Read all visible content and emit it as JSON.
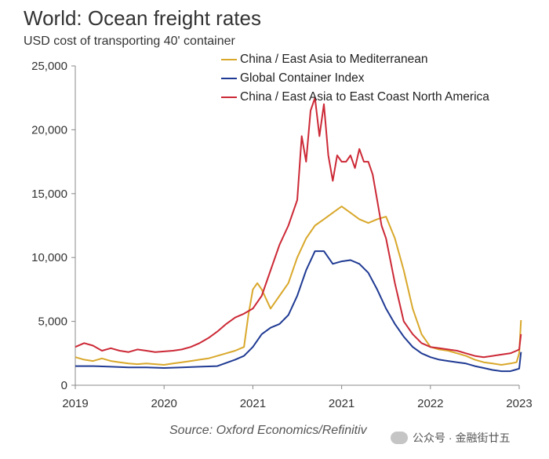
{
  "header": {
    "title": "World: Ocean freight rates",
    "subtitle": "USD cost of transporting 40' container"
  },
  "footer": {
    "source": "Source: Oxford Economics/Refinitiv",
    "watermark": "公众号 · 金融街廿五"
  },
  "chart_data": {
    "type": "line",
    "title": "World: Ocean freight rates",
    "subtitle": "USD cost of transporting 40' container",
    "xlabel": "",
    "ylabel": "",
    "ylim": [
      0,
      25000
    ],
    "xlim": [
      0,
      5
    ],
    "yticks": [
      0,
      5000,
      10000,
      15000,
      20000,
      25000
    ],
    "ytick_labels": [
      "0",
      "5,000",
      "10,000",
      "15,000",
      "20,000",
      "25,000"
    ],
    "xticks": [
      0,
      1,
      2,
      3,
      4,
      5
    ],
    "xtick_labels": [
      "2019",
      "2020",
      "2021",
      "2021",
      "2022",
      "2023"
    ],
    "legend_position": "top-right",
    "grid": false,
    "series": [
      {
        "name": "China / East Asia to Mediterranean",
        "color": "#d9a82b",
        "x": [
          0,
          0.1,
          0.2,
          0.3,
          0.4,
          0.5,
          0.6,
          0.7,
          0.8,
          0.9,
          1.0,
          1.1,
          1.2,
          1.3,
          1.4,
          1.5,
          1.6,
          1.7,
          1.8,
          1.9,
          1.95,
          2.0,
          2.05,
          2.1,
          2.2,
          2.3,
          2.4,
          2.5,
          2.6,
          2.7,
          2.8,
          2.9,
          3.0,
          3.1,
          3.2,
          3.3,
          3.4,
          3.5,
          3.6,
          3.7,
          3.8,
          3.9,
          4.0,
          4.1,
          4.2,
          4.3,
          4.4,
          4.5,
          4.6,
          4.7,
          4.8,
          4.9,
          4.97,
          5.0,
          5.02
        ],
        "values": [
          2200,
          2000,
          1900,
          2100,
          1900,
          1800,
          1700,
          1650,
          1700,
          1650,
          1600,
          1700,
          1800,
          1900,
          2000,
          2100,
          2300,
          2500,
          2700,
          3000,
          5500,
          7500,
          8000,
          7500,
          6000,
          7000,
          8000,
          10000,
          11500,
          12500,
          13000,
          13500,
          14000,
          13500,
          13000,
          12700,
          13000,
          13200,
          11500,
          9000,
          6000,
          4000,
          3000,
          2800,
          2700,
          2500,
          2300,
          2000,
          1800,
          1700,
          1600,
          1700,
          1800,
          2500,
          5100
        ]
      },
      {
        "name": "Global Container Index",
        "color": "#1f3a93",
        "x": [
          0,
          0.2,
          0.4,
          0.6,
          0.8,
          1.0,
          1.2,
          1.4,
          1.6,
          1.8,
          1.9,
          2.0,
          2.1,
          2.2,
          2.3,
          2.4,
          2.5,
          2.6,
          2.7,
          2.8,
          2.9,
          3.0,
          3.1,
          3.2,
          3.3,
          3.4,
          3.5,
          3.6,
          3.7,
          3.8,
          3.9,
          4.0,
          4.1,
          4.2,
          4.3,
          4.4,
          4.5,
          4.6,
          4.7,
          4.8,
          4.9,
          4.95,
          5.0,
          5.02
        ],
        "values": [
          1500,
          1500,
          1450,
          1400,
          1400,
          1350,
          1400,
          1450,
          1500,
          2000,
          2300,
          3000,
          4000,
          4500,
          4800,
          5500,
          7000,
          9000,
          10500,
          10500,
          9500,
          9700,
          9800,
          9500,
          8800,
          7500,
          6000,
          4800,
          3800,
          3000,
          2500,
          2200,
          2000,
          1900,
          1800,
          1700,
          1500,
          1350,
          1200,
          1100,
          1100,
          1200,
          1300,
          2600
        ]
      },
      {
        "name": "China / East Asia to East Coast North America",
        "color": "#cc2936",
        "x": [
          0,
          0.1,
          0.2,
          0.3,
          0.4,
          0.5,
          0.6,
          0.7,
          0.8,
          0.9,
          1.0,
          1.1,
          1.2,
          1.3,
          1.4,
          1.5,
          1.6,
          1.7,
          1.8,
          1.9,
          2.0,
          2.1,
          2.2,
          2.3,
          2.4,
          2.5,
          2.55,
          2.6,
          2.65,
          2.7,
          2.75,
          2.8,
          2.85,
          2.9,
          2.95,
          3.0,
          3.05,
          3.1,
          3.15,
          3.2,
          3.25,
          3.3,
          3.35,
          3.4,
          3.45,
          3.5,
          3.6,
          3.7,
          3.8,
          3.9,
          4.0,
          4.1,
          4.2,
          4.3,
          4.4,
          4.5,
          4.6,
          4.7,
          4.8,
          4.9,
          4.97,
          5.0,
          5.02
        ],
        "values": [
          3000,
          3300,
          3100,
          2700,
          2900,
          2700,
          2600,
          2800,
          2700,
          2600,
          2650,
          2700,
          2800,
          3000,
          3300,
          3700,
          4200,
          4800,
          5300,
          5600,
          6000,
          7000,
          9000,
          11000,
          12500,
          14500,
          19500,
          17500,
          21500,
          22500,
          19500,
          22000,
          18000,
          16000,
          18000,
          17500,
          17500,
          18000,
          17000,
          18500,
          17500,
          17500,
          16500,
          14500,
          12500,
          11500,
          8000,
          5000,
          4000,
          3300,
          3000,
          2900,
          2800,
          2700,
          2500,
          2300,
          2200,
          2300,
          2400,
          2500,
          2700,
          2800,
          4000
        ]
      }
    ]
  }
}
